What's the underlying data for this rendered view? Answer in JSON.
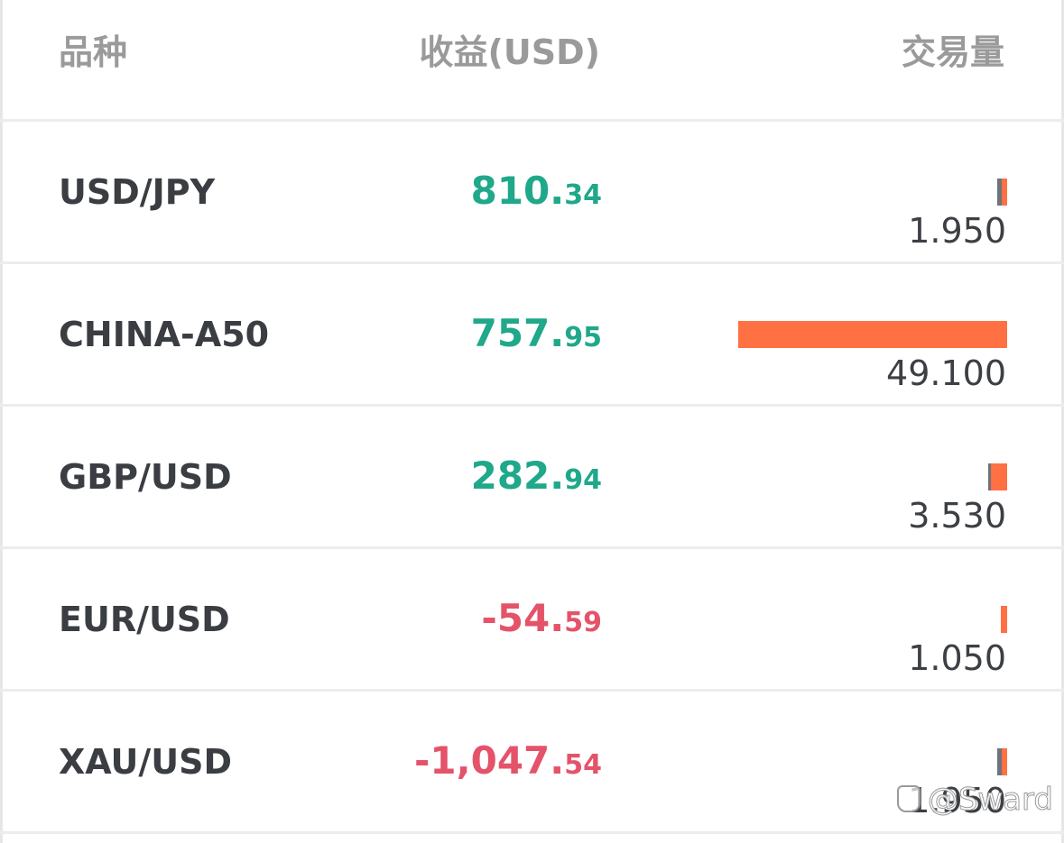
{
  "header": {
    "col_instrument": "品种",
    "col_pnl": "收益(USD)",
    "col_volume": "交易量"
  },
  "rows": [
    {
      "name": "USD/JPY",
      "pnl_int": "810.",
      "pnl_dec": "34",
      "sign": "pos",
      "volume": "1.950",
      "bar_grey_frac": 0.018,
      "bar_orange_frac": 0.02
    },
    {
      "name": "CHINA-A50",
      "pnl_int": "757.",
      "pnl_dec": "95",
      "sign": "pos",
      "volume": "49.100",
      "bar_grey_frac": 0.0,
      "bar_orange_frac": 1.0
    },
    {
      "name": "GBP/USD",
      "pnl_int": "282.",
      "pnl_dec": "94",
      "sign": "pos",
      "volume": "3.530",
      "bar_grey_frac": 0.01,
      "bar_orange_frac": 0.06
    },
    {
      "name": "EUR/USD",
      "pnl_int": "-54.",
      "pnl_dec": "59",
      "sign": "neg",
      "volume": "1.050",
      "bar_grey_frac": 0.0,
      "bar_orange_frac": 0.024
    },
    {
      "name": "XAU/USD",
      "pnl_int": "-1,047.",
      "pnl_dec": "54",
      "sign": "neg",
      "volume": "1.950",
      "bar_grey_frac": 0.018,
      "bar_orange_frac": 0.02
    }
  ],
  "colors": {
    "positive": "#1fa88a",
    "negative": "#e4536a",
    "bar_orange": "#ff7043",
    "bar_grey": "#6f737d"
  },
  "watermark": "@Sward"
}
